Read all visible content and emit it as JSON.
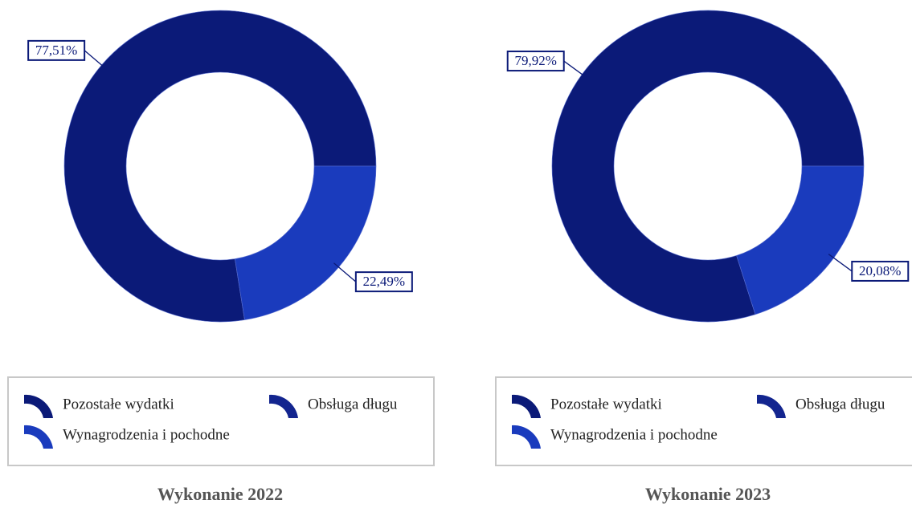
{
  "chart_data": [
    {
      "type": "donut",
      "title": "Wykonanie 2022",
      "categories": [
        "Pozostałe wydatki",
        "Obsługa długu",
        "Wynagrodzenia i pochodne"
      ],
      "values": [
        77.51,
        0,
        22.49
      ],
      "value_labels": [
        "77,51%",
        null,
        "22,49%"
      ],
      "colors": [
        "#0b1a78",
        "#13258f",
        "#1a3bbd"
      ]
    },
    {
      "type": "donut",
      "title": "Wykonanie 2023",
      "categories": [
        "Pozostałe wydatki",
        "Obsługa długu",
        "Wynagrodzenia i pochodne"
      ],
      "values": [
        79.92,
        0,
        20.08
      ],
      "value_labels": [
        "79,92%",
        null,
        "20,08%"
      ],
      "colors": [
        "#0b1a78",
        "#13258f",
        "#1a3bbd"
      ]
    }
  ]
}
